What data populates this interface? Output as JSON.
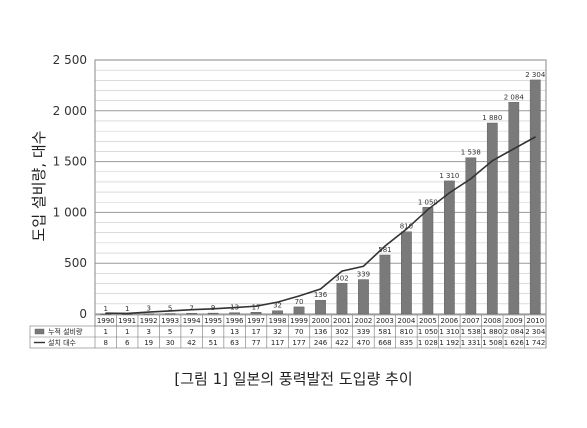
{
  "caption": "[그림 1] 일본의 풍력발전 도입량 추이",
  "chart_data": {
    "type": "bar",
    "title": "",
    "xlabel": "",
    "ylabel": "도입 설비량, 대수",
    "ylim": [
      0,
      2500
    ],
    "yticks": [
      0,
      500,
      1000,
      1500,
      2000,
      2500
    ],
    "ytick_labels": [
      "0",
      "500",
      "1 000",
      "1 500",
      "2 000",
      "2 500"
    ],
    "grid": true,
    "categories": [
      "1990",
      "1991",
      "1992",
      "1993",
      "1994",
      "1995",
      "1996",
      "1997",
      "1998",
      "1999",
      "2000",
      "2001",
      "2002",
      "2003",
      "2004",
      "2005",
      "2006",
      "2007",
      "2008",
      "2009",
      "2010"
    ],
    "series": [
      {
        "name": "누적 설비량",
        "type": "bar",
        "color": "#7a7a7a",
        "values": [
          1,
          1,
          3,
          5,
          7,
          9,
          13,
          17,
          32,
          70,
          136,
          302,
          339,
          581,
          810,
          1050,
          1310,
          1538,
          1880,
          2084,
          2304
        ],
        "labels": [
          "1",
          "1",
          "3",
          "5",
          "7",
          "9",
          "13",
          "17",
          "32",
          "70",
          "136",
          "302",
          "339",
          "581",
          "810",
          "1 050",
          "1 310",
          "1 538",
          "1 880",
          "2 084",
          "2 304"
        ]
      },
      {
        "name": "설치 대수",
        "type": "line",
        "color": "#333333",
        "values": [
          8,
          6,
          19,
          30,
          42,
          51,
          63,
          77,
          117,
          177,
          246,
          422,
          470,
          668,
          835,
          1028,
          1192,
          1331,
          1508,
          1626,
          1742
        ],
        "labels": [
          "8",
          "6",
          "19",
          "30",
          "42",
          "51",
          "63",
          "77",
          "117",
          "177",
          "246",
          "422",
          "470",
          "668",
          "835",
          "1 028",
          "1 192",
          "1 331",
          "1 508",
          "1 626",
          "1 742"
        ]
      }
    ]
  }
}
